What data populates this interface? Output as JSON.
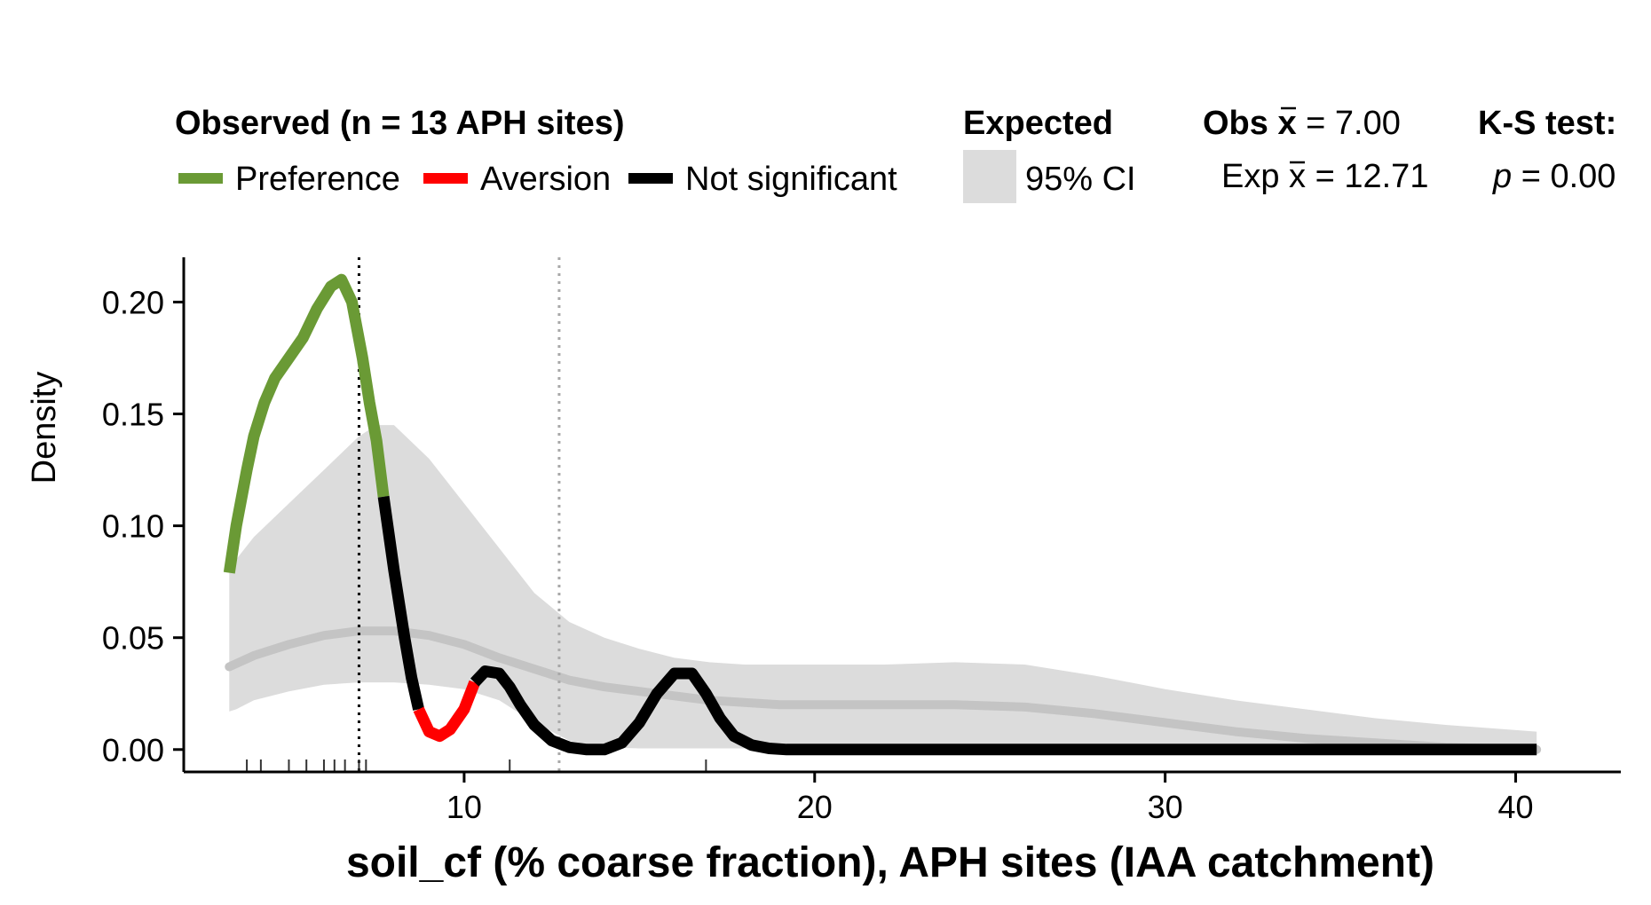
{
  "chart_data": {
    "type": "line",
    "xlabel": "soil_cf (% coarse fraction), APH sites (IAA catchment)",
    "ylabel": "Density",
    "xlim": [
      2,
      43
    ],
    "ylim": [
      -0.01,
      0.22
    ],
    "x_ticks": [
      10,
      20,
      30,
      40
    ],
    "y_ticks": [
      0.0,
      0.05,
      0.1,
      0.15,
      0.2
    ],
    "x_tick_labels": [
      "10",
      "20",
      "30",
      "40"
    ],
    "y_tick_labels": [
      "0.00",
      "0.05",
      "0.10",
      "0.15",
      "0.20"
    ],
    "legend": {
      "observed_title": "Observed (n = 13 APH sites)",
      "items": [
        {
          "label": "Preference",
          "color": "#6a9a35"
        },
        {
          "label": "Aversion",
          "color": "#ff0000"
        },
        {
          "label": "Not significant",
          "color": "#000000"
        }
      ],
      "expected_title": "Expected",
      "ci_label": "95% CI",
      "ci_color": "#dcdcdc",
      "obs_mean_bold": "Obs",
      "obs_mean_rest": " = 7.00",
      "exp_mean_text": "= 12.71",
      "exp_mean_prefix": "Exp",
      "ks_title": "K-S test:",
      "ks_p_symbol": "p",
      "ks_p_value": " = 0.00",
      "xbar_symbol": "x"
    },
    "obs_mean": 7.0,
    "exp_mean": 12.71,
    "rug": [
      3.8,
      4.2,
      5.0,
      5.5,
      6.0,
      6.3,
      6.6,
      7.0,
      7.2,
      11.3,
      16.9
    ],
    "observed_density": {
      "x": [
        3.3,
        3.5,
        3.8,
        4.0,
        4.3,
        4.6,
        5.0,
        5.4,
        5.8,
        6.2,
        6.5,
        6.8,
        7.1,
        7.3,
        7.5,
        7.7,
        8.0,
        8.3,
        8.5,
        8.7,
        9.0,
        9.3,
        9.6,
        10.0,
        10.3,
        10.6,
        11.0,
        11.3,
        11.6,
        12.0,
        12.5,
        13.0,
        13.5,
        14.0,
        14.5,
        15.0,
        15.5,
        16.0,
        16.5,
        16.9,
        17.3,
        17.7,
        18.2,
        18.7,
        19.2,
        19.6,
        20.0,
        25.0,
        30.0,
        35.0,
        40.0,
        40.6
      ],
      "y": [
        0.079,
        0.1,
        0.125,
        0.14,
        0.155,
        0.166,
        0.175,
        0.184,
        0.197,
        0.207,
        0.21,
        0.2,
        0.175,
        0.155,
        0.138,
        0.113,
        0.08,
        0.05,
        0.032,
        0.018,
        0.008,
        0.006,
        0.009,
        0.018,
        0.03,
        0.035,
        0.034,
        0.028,
        0.02,
        0.011,
        0.004,
        0.001,
        0.0,
        0.0,
        0.003,
        0.012,
        0.025,
        0.034,
        0.034,
        0.025,
        0.014,
        0.006,
        0.002,
        0.0005,
        0.0,
        0.0,
        0.0,
        0.0,
        0.0,
        0.0,
        0.0,
        0.0
      ],
      "significance": [
        "pref",
        "pref",
        "pref",
        "pref",
        "pref",
        "pref",
        "pref",
        "pref",
        "pref",
        "pref",
        "pref",
        "pref",
        "pref",
        "pref",
        "pref",
        "ns",
        "ns",
        "ns",
        "ns",
        "avers",
        "avers",
        "avers",
        "avers",
        "avers",
        "ns",
        "ns",
        "ns",
        "ns",
        "ns",
        "ns",
        "ns",
        "ns",
        "ns",
        "ns",
        "ns",
        "ns",
        "ns",
        "ns",
        "ns",
        "ns",
        "ns",
        "ns",
        "ns",
        "ns",
        "ns",
        "ns",
        "ns",
        "ns",
        "ns",
        "ns",
        "ns",
        "ns"
      ]
    },
    "expected_ci": {
      "x": [
        3.3,
        3.5,
        4.0,
        5.0,
        6.0,
        7.0,
        7.5,
        8.0,
        9.0,
        10.0,
        11.0,
        12.0,
        13.0,
        14.0,
        15.0,
        16.0,
        17.0,
        18.0,
        19.0,
        20.0,
        22.0,
        24.0,
        26.0,
        28.0,
        30.0,
        32.0,
        34.0,
        36.0,
        38.0,
        40.6
      ],
      "lower": [
        0.017,
        0.018,
        0.022,
        0.026,
        0.029,
        0.03,
        0.03,
        0.03,
        0.029,
        0.027,
        0.022,
        0.012,
        0.004,
        0.001,
        0.0005,
        0.0005,
        0.0005,
        0.0005,
        0.0005,
        0.0005,
        0.0005,
        0.0005,
        0.0005,
        0.0005,
        0.0005,
        0.0005,
        0.0005,
        0.0005,
        0.0005,
        0.0005
      ],
      "upper": [
        0.08,
        0.085,
        0.095,
        0.11,
        0.125,
        0.14,
        0.145,
        0.145,
        0.13,
        0.11,
        0.09,
        0.07,
        0.057,
        0.05,
        0.045,
        0.041,
        0.039,
        0.038,
        0.038,
        0.038,
        0.038,
        0.039,
        0.038,
        0.033,
        0.027,
        0.022,
        0.018,
        0.014,
        0.011,
        0.008
      ]
    },
    "expected_mean": {
      "x": [
        3.3,
        4.0,
        5.0,
        6.0,
        7.0,
        8.0,
        9.0,
        10.0,
        11.0,
        12.0,
        13.0,
        14.0,
        15.0,
        16.0,
        17.0,
        18.0,
        19.0,
        20.0,
        22.0,
        24.0,
        26.0,
        28.0,
        30.0,
        32.0,
        34.0,
        36.0,
        38.0,
        40.6
      ],
      "y": [
        0.037,
        0.042,
        0.047,
        0.051,
        0.053,
        0.053,
        0.051,
        0.047,
        0.041,
        0.036,
        0.031,
        0.028,
        0.026,
        0.024,
        0.022,
        0.021,
        0.02,
        0.02,
        0.02,
        0.02,
        0.019,
        0.016,
        0.012,
        0.008,
        0.005,
        0.003,
        0.001,
        0.0
      ]
    }
  }
}
